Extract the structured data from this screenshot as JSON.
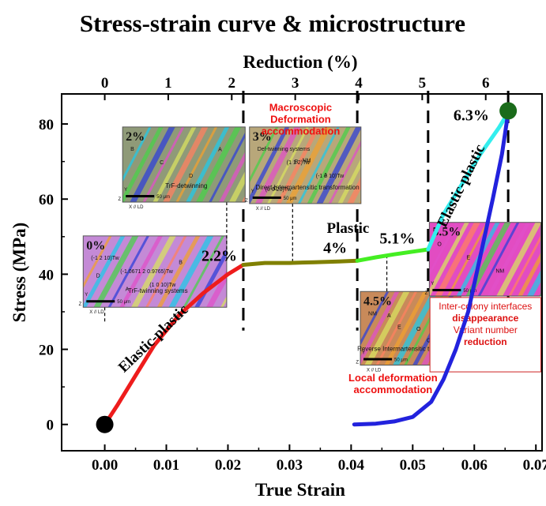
{
  "chart_data": {
    "type": "line",
    "title": "Stress-strain curve & microstructure",
    "xlabel": "True Strain",
    "ylabel": "Stress (MPa)",
    "x2label": "Reduction (%)",
    "xlim": [
      -0.007,
      0.071
    ],
    "ylim": [
      -7,
      88
    ],
    "xticks": [
      0.0,
      0.01,
      0.02,
      0.03,
      0.04,
      0.05,
      0.06,
      0.07
    ],
    "xtick_labels": [
      "0.00",
      "0.01",
      "0.02",
      "0.03",
      "0.04",
      "0.05",
      "0.06",
      "0.07"
    ],
    "yticks": [
      0,
      20,
      40,
      60,
      80
    ],
    "ytick_labels": [
      "0",
      "20",
      "40",
      "60",
      "80"
    ],
    "x2ticks": [
      0,
      1,
      2,
      3,
      4,
      5,
      6
    ],
    "x2tick_labels": [
      "0",
      "1",
      "2",
      "3",
      "4",
      "5",
      "6"
    ],
    "x2_reduction_per_unit_strain": 97,
    "grid": false,
    "series": [
      {
        "color": "#ee1c1c",
        "points": [
          [
            0.0,
            0
          ],
          [
            0.002,
            5
          ],
          [
            0.005,
            13
          ],
          [
            0.008,
            21
          ],
          [
            0.012,
            29
          ],
          [
            0.016,
            35
          ],
          [
            0.02,
            40
          ],
          [
            0.0225,
            42.5
          ]
        ]
      },
      {
        "color": "#808000",
        "points": [
          [
            0.0225,
            42.5
          ],
          [
            0.026,
            43.0
          ],
          [
            0.03,
            43.0
          ],
          [
            0.034,
            43.2
          ],
          [
            0.038,
            43.4
          ],
          [
            0.041,
            43.6
          ]
        ]
      },
      {
        "color": "#44ee22",
        "points": [
          [
            0.041,
            43.6
          ],
          [
            0.044,
            44.5
          ],
          [
            0.047,
            45.3
          ],
          [
            0.05,
            46.0
          ],
          [
            0.0525,
            46.6
          ]
        ]
      },
      {
        "color": "#33eeee",
        "points": [
          [
            0.0525,
            46.6
          ],
          [
            0.055,
            56
          ],
          [
            0.058,
            64
          ],
          [
            0.061,
            72
          ],
          [
            0.064,
            79
          ],
          [
            0.0655,
            83
          ]
        ]
      },
      {
        "color": "#2222dd",
        "points": [
          [
            0.0655,
            83
          ],
          [
            0.0645,
            72
          ],
          [
            0.063,
            60
          ],
          [
            0.061,
            45
          ],
          [
            0.059,
            30
          ],
          [
            0.057,
            20
          ],
          [
            0.055,
            12
          ],
          [
            0.053,
            6
          ],
          [
            0.05,
            2
          ],
          [
            0.047,
            0.8
          ],
          [
            0.044,
            0.2
          ],
          [
            0.0405,
            0
          ]
        ]
      }
    ],
    "markers": [
      {
        "x": 0.0,
        "y": 0,
        "color": "#000000"
      },
      {
        "x": 0.0655,
        "y": 83.5,
        "color": "#1a6b1a"
      }
    ],
    "stage_lines_x": [
      0.0225,
      0.041,
      0.0525,
      0.0655
    ],
    "point_labels": [
      {
        "text": "2.2%",
        "x": 0.0186,
        "y": 43.5
      },
      {
        "text": "4%",
        "x": 0.0374,
        "y": 45.7
      },
      {
        "text": "5.1%",
        "x": 0.0475,
        "y": 48.2
      },
      {
        "text": "6.3%",
        "x": 0.0595,
        "y": 81
      }
    ],
    "text_labels": [
      {
        "text": "Elastic-plastic",
        "x": 0.0084,
        "y": 22,
        "rotate": -44
      },
      {
        "text": "Plastic",
        "x": 0.0395,
        "y": 51
      },
      {
        "text": "Elastic-plastic",
        "x": 0.0585,
        "y": 63,
        "rotate": -64
      }
    ],
    "annotations_red": [
      {
        "lines": [
          "Macroscopic",
          "Deformation",
          "accommodation"
        ],
        "x": 0.0318,
        "y": 83.5
      },
      {
        "lines": [
          "Local deformation",
          "accommodation"
        ],
        "x": 0.0468,
        "y": 11.5
      }
    ],
    "insets": [
      {
        "stage": "0%",
        "x0": -0.0035,
        "x1": 0.0198,
        "y0": 31.2,
        "y1": 50.2,
        "bg": "#c48ad6",
        "label": "TrF-twinning systems",
        "notes": [
          "(-1 2 10)Tw",
          "(-1.0671 2 0.9765)Tw",
          "(1 0 10)Tw",
          "B",
          "D",
          "A"
        ],
        "connect": [
          0.0,
          0.0,
          27
        ]
      },
      {
        "stage": "2%",
        "x0": 0.0029,
        "x1": 0.0228,
        "y0": 59.2,
        "y1": 79.2,
        "bg": "#8f9a78",
        "label": "TrF-detwinning",
        "notes": [
          "B",
          "C",
          "D",
          "A"
        ],
        "connect": [
          0.0198,
          0.0198,
          43.2
        ]
      },
      {
        "stage": "3%",
        "x0": 0.0235,
        "x1": 0.0416,
        "y0": 58.8,
        "y1": 79.2,
        "bg": "#b8a77a",
        "label": "Direct Intermartensitic transformation",
        "notes": [
          "Def-twinning systems",
          "(1 1 2)Tw",
          "(-1 2 10)Tw",
          "(0 0 20)Tw",
          "B",
          "A",
          "C",
          "NM"
        ],
        "connect": [
          0.0305,
          0.0305,
          43.0
        ]
      },
      {
        "stage": "4.5%",
        "x0": 0.0415,
        "x1": 0.0578,
        "y0": 15.8,
        "y1": 35.4,
        "bg": "#c88a5a",
        "label": "Reverse Intermartensitic transformation",
        "notes": [
          "NM",
          "E",
          "C",
          "A",
          "O"
        ],
        "connect": [
          0.0458,
          0.0458,
          44.5
        ]
      },
      {
        "stage": "5.5%",
        "x0": 0.0527,
        "x1": 0.0708,
        "y0": 34.2,
        "y1": 53.8,
        "bg": "#e24cc2",
        "label": "",
        "notes": [
          "O",
          "E",
          "NM"
        ],
        "connect": [
          0.0563,
          0.0563,
          52.5
        ]
      }
    ],
    "infobox": {
      "x0": 0.0528,
      "x1": 0.0708,
      "y0": 14.0,
      "y1": 33.8,
      "lines": [
        "Inter-colony interfaces",
        "disappearance",
        "Variant number",
        "reduction"
      ]
    },
    "scale_bar_text": "50 μm",
    "axis_glyphs": [
      "Y",
      "Z",
      "X // LD"
    ]
  }
}
